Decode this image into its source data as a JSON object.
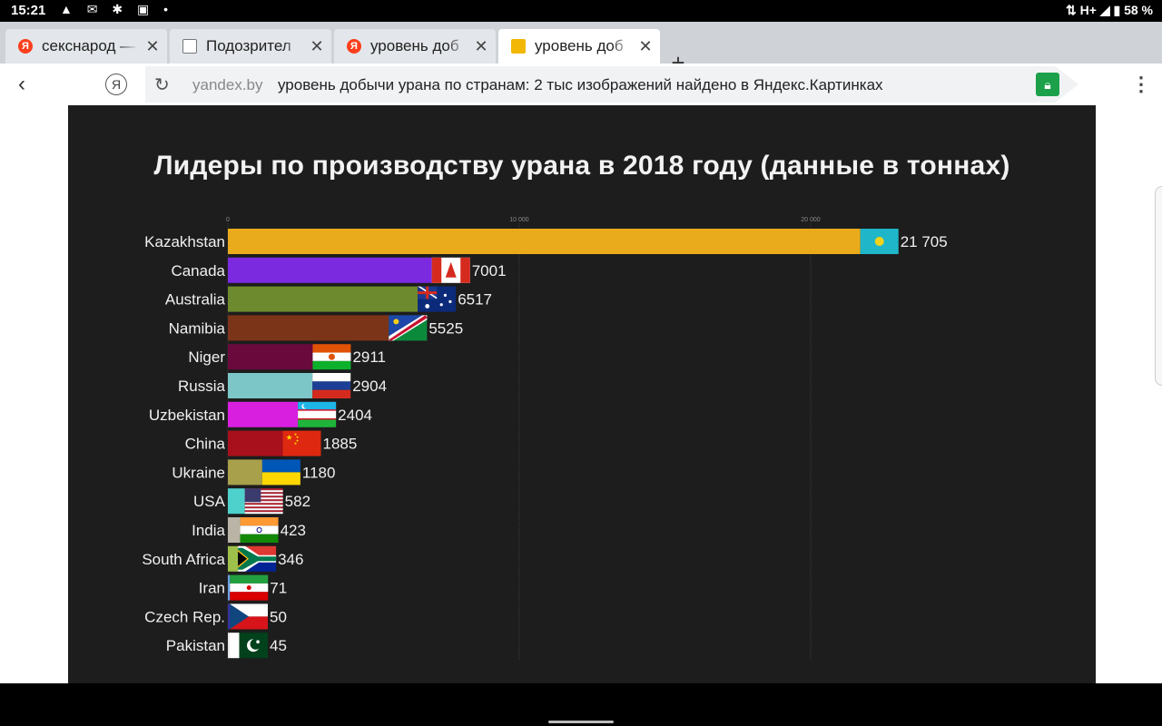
{
  "status": {
    "time": "15:21",
    "icons": "▲ ✉ ✱ ▣ •",
    "network": "H+",
    "battery": "58 %"
  },
  "tabs": [
    {
      "label": "секснарод — ",
      "favicon": "Я"
    },
    {
      "label": "Подозрител",
      "favicon": ""
    },
    {
      "label": "уровень доб",
      "favicon": "Я"
    },
    {
      "label": "уровень доб",
      "favicon": ""
    }
  ],
  "addressbar": {
    "domain": "yandex.by",
    "title": "уровень добычи урана по странам: 2 тыс изображений найдено в Яндекс.Картинках"
  },
  "colors": {
    "gold": "#e9ab1c",
    "background": "#1d1d1d"
  },
  "chart_data": {
    "type": "bar",
    "orientation": "horizontal",
    "title": "Лидеры по производству урана в 2018 году (данные в тоннах)",
    "xlim": [
      0,
      22000
    ],
    "xticks": [
      0,
      10000,
      20000
    ],
    "xtick_labels": [
      "0",
      "10 000",
      "20 000"
    ],
    "grid": true,
    "categories": [
      "Kazakhstan",
      "Canada",
      "Australia",
      "Namibia",
      "Niger",
      "Russia",
      "Uzbekistan",
      "China",
      "Ukraine",
      "USA",
      "India",
      "South Africa",
      "Iran",
      "Czech Rep.",
      "Pakistan"
    ],
    "values": [
      21705,
      7001,
      6517,
      5525,
      2911,
      2904,
      2404,
      1885,
      1180,
      582,
      423,
      346,
      71,
      50,
      45
    ],
    "value_labels": [
      "21 705",
      "7001",
      "6517",
      "5525",
      "2911",
      "2904",
      "2404",
      "1885",
      "1180",
      "582",
      "423",
      "346",
      "71",
      "50",
      "45"
    ],
    "bar_colors": [
      "#e9ab1c",
      "#7b2ae0",
      "#6e8a2e",
      "#7c3418",
      "#6a0a3c",
      "#7cc6c8",
      "#d81fe0",
      "#a8111c",
      "#a8a04a",
      "#4ed1cc",
      "#b9b4a6",
      "#9ec04a",
      "#6aa0e8",
      "#3c2ea0",
      "#e8e8e8"
    ],
    "flags": [
      "kazakhstan-flag",
      "canada-flag",
      "australia-flag",
      "namibia-flag",
      "niger-flag",
      "russia-flag",
      "uzbekistan-flag",
      "china-flag",
      "ukraine-flag",
      "usa-flag",
      "india-flag",
      "south-africa-flag",
      "iran-flag",
      "czech-flag",
      "pakistan-flag"
    ]
  }
}
